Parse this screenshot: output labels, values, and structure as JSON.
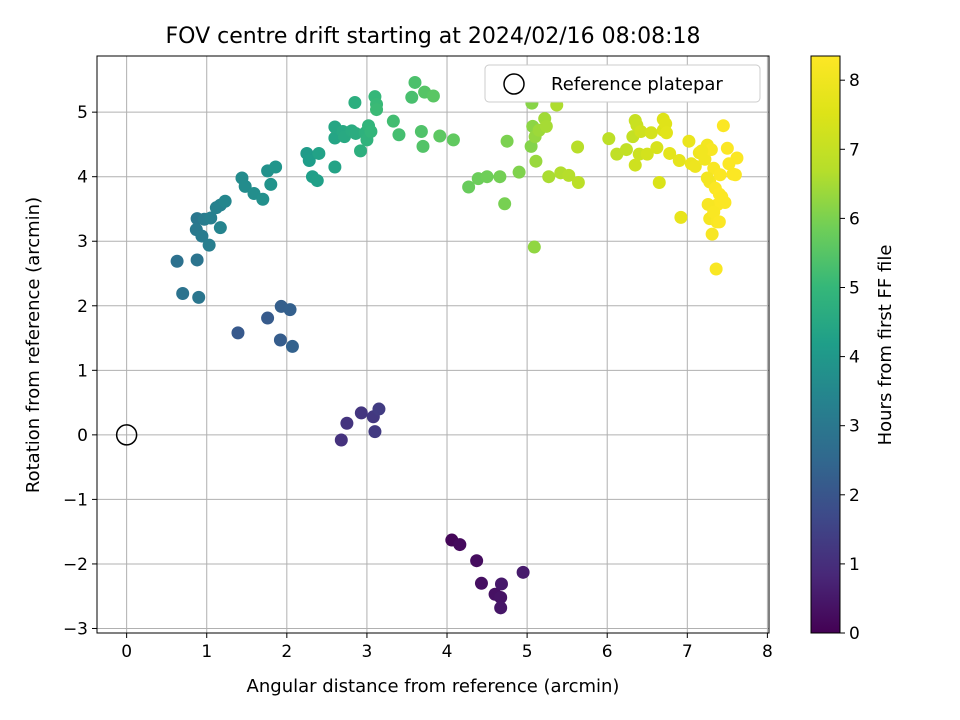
{
  "chart_data": {
    "type": "scatter",
    "title": "FOV centre drift starting at 2024/02/16 08:08:18",
    "xlabel": "Angular distance from reference (arcmin)",
    "ylabel": "Rotation from reference (arcmin)",
    "xlim": [
      -0.37,
      8.02
    ],
    "ylim": [
      -3.07,
      5.87
    ],
    "xticks": [
      "0",
      "1",
      "2",
      "3",
      "4",
      "5",
      "6",
      "7",
      "8"
    ],
    "yticks": [
      "−3",
      "−2",
      "−1",
      "0",
      "1",
      "2",
      "3",
      "4",
      "5"
    ],
    "grid": true,
    "legend": {
      "placement": "top-right",
      "entries": [
        "Reference platepar"
      ]
    },
    "colorbar": {
      "label": "Hours from first FF file",
      "range": [
        0,
        8.35
      ],
      "ticks": [
        "0",
        "1",
        "2",
        "3",
        "4",
        "5",
        "6",
        "7",
        "8"
      ],
      "colormap": "viridis"
    },
    "reference_point": {
      "x": 0,
      "y": 0,
      "name": "Reference platepar"
    },
    "points": [
      [
        4.06,
        -1.63,
        0.1
      ],
      [
        4.16,
        -1.7,
        0.2
      ],
      [
        4.37,
        -1.95,
        0.25
      ],
      [
        4.43,
        -2.3,
        0.3
      ],
      [
        4.6,
        -2.47,
        0.35
      ],
      [
        4.67,
        -2.52,
        0.4
      ],
      [
        4.67,
        -2.68,
        0.45
      ],
      [
        4.68,
        -2.31,
        0.5
      ],
      [
        4.95,
        -2.13,
        0.55
      ],
      [
        2.68,
        -0.08,
        1.1
      ],
      [
        2.75,
        0.18,
        1.15
      ],
      [
        2.93,
        0.34,
        1.2
      ],
      [
        3.08,
        0.28,
        1.25
      ],
      [
        3.1,
        0.05,
        1.3
      ],
      [
        3.15,
        0.4,
        1.35
      ],
      [
        1.39,
        1.58,
        2.1
      ],
      [
        1.76,
        1.81,
        2.15
      ],
      [
        1.92,
        1.47,
        2.2
      ],
      [
        1.93,
        1.99,
        2.25
      ],
      [
        2.04,
        1.94,
        2.3
      ],
      [
        2.07,
        1.37,
        2.35
      ],
      [
        0.63,
        2.69,
        2.8
      ],
      [
        0.7,
        2.19,
        2.85
      ],
      [
        0.88,
        2.71,
        2.9
      ],
      [
        0.9,
        2.13,
        2.95
      ],
      [
        0.88,
        3.35,
        3.0
      ],
      [
        0.87,
        3.18,
        3.05
      ],
      [
        0.94,
        3.08,
        3.1
      ],
      [
        0.97,
        3.34,
        3.15
      ],
      [
        1.03,
        2.94,
        3.2
      ],
      [
        1.05,
        3.36,
        3.25
      ],
      [
        1.12,
        3.52,
        3.3
      ],
      [
        1.17,
        3.56,
        3.35
      ],
      [
        1.17,
        3.21,
        3.4
      ],
      [
        1.23,
        3.62,
        3.45
      ],
      [
        1.44,
        3.98,
        3.6
      ],
      [
        1.48,
        3.85,
        3.65
      ],
      [
        1.59,
        3.74,
        3.7
      ],
      [
        1.7,
        3.65,
        3.75
      ],
      [
        1.76,
        4.09,
        3.8
      ],
      [
        1.8,
        3.88,
        3.85
      ],
      [
        1.86,
        4.15,
        3.9
      ],
      [
        2.25,
        4.36,
        4.1
      ],
      [
        2.28,
        4.25,
        4.15
      ],
      [
        2.32,
        4.0,
        4.2
      ],
      [
        2.38,
        3.94,
        4.25
      ],
      [
        2.4,
        4.36,
        4.3
      ],
      [
        2.6,
        4.15,
        4.35
      ],
      [
        2.6,
        4.6,
        4.4
      ],
      [
        2.6,
        4.77,
        4.45
      ],
      [
        2.7,
        4.7,
        4.5
      ],
      [
        2.72,
        4.62,
        4.55
      ],
      [
        2.81,
        4.71,
        4.6
      ],
      [
        2.86,
        4.67,
        4.65
      ],
      [
        2.85,
        5.15,
        4.7
      ],
      [
        2.92,
        4.4,
        4.75
      ],
      [
        2.98,
        4.68,
        4.8
      ],
      [
        3.0,
        4.57,
        4.85
      ],
      [
        3.02,
        4.79,
        4.9
      ],
      [
        3.05,
        4.7,
        4.95
      ],
      [
        3.1,
        5.24,
        5.0
      ],
      [
        3.12,
        5.12,
        5.05
      ],
      [
        3.12,
        5.04,
        5.1
      ],
      [
        3.33,
        4.86,
        5.2
      ],
      [
        3.4,
        4.65,
        5.25
      ],
      [
        3.56,
        5.23,
        5.3
      ],
      [
        3.6,
        5.46,
        5.35
      ],
      [
        3.68,
        4.7,
        5.4
      ],
      [
        3.7,
        4.47,
        5.45
      ],
      [
        3.72,
        5.31,
        5.5
      ],
      [
        3.83,
        5.25,
        5.55
      ],
      [
        3.91,
        4.63,
        5.6
      ],
      [
        4.08,
        4.57,
        5.65
      ],
      [
        4.27,
        3.84,
        5.75
      ],
      [
        4.39,
        3.97,
        5.8
      ],
      [
        4.5,
        4.0,
        5.85
      ],
      [
        4.66,
        4.0,
        5.9
      ],
      [
        4.72,
        3.58,
        5.95
      ],
      [
        4.75,
        4.55,
        6.0
      ],
      [
        4.9,
        4.07,
        6.05
      ],
      [
        5.05,
        4.47,
        6.1
      ],
      [
        5.06,
        5.14,
        6.15
      ],
      [
        5.07,
        4.78,
        6.2
      ],
      [
        5.09,
        2.91,
        6.25
      ],
      [
        5.1,
        4.62,
        6.3
      ],
      [
        5.11,
        4.24,
        6.35
      ],
      [
        5.15,
        4.72,
        6.4
      ],
      [
        5.22,
        4.9,
        6.45
      ],
      [
        5.24,
        4.78,
        6.5
      ],
      [
        5.27,
        4.0,
        6.55
      ],
      [
        5.37,
        5.11,
        6.6
      ],
      [
        5.42,
        4.06,
        6.65
      ],
      [
        5.52,
        4.02,
        6.7
      ],
      [
        5.63,
        4.46,
        6.75
      ],
      [
        5.64,
        3.91,
        6.8
      ],
      [
        6.02,
        4.59,
        6.85
      ],
      [
        6.12,
        4.35,
        6.9
      ],
      [
        6.24,
        4.42,
        6.95
      ],
      [
        6.32,
        4.62,
        7.0
      ],
      [
        6.35,
        4.87,
        7.05
      ],
      [
        6.37,
        4.8,
        7.1
      ],
      [
        6.4,
        4.35,
        7.15
      ],
      [
        6.35,
        4.18,
        7.2
      ],
      [
        6.42,
        4.7,
        7.25
      ],
      [
        6.5,
        4.35,
        7.3
      ],
      [
        6.55,
        4.68,
        7.35
      ],
      [
        6.62,
        4.45,
        7.4
      ],
      [
        6.65,
        3.91,
        7.45
      ],
      [
        6.7,
        4.72,
        7.5
      ],
      [
        6.7,
        4.89,
        7.55
      ],
      [
        6.73,
        4.82,
        7.6
      ],
      [
        6.74,
        4.68,
        7.65
      ],
      [
        6.78,
        4.36,
        7.7
      ],
      [
        6.9,
        4.25,
        7.75
      ],
      [
        6.92,
        3.37,
        7.8
      ],
      [
        7.02,
        4.55,
        7.85
      ],
      [
        7.05,
        4.2,
        7.9
      ],
      [
        7.1,
        4.16,
        7.95
      ],
      [
        7.15,
        4.37,
        8.0
      ],
      [
        7.22,
        4.27,
        8.05
      ],
      [
        7.25,
        4.49,
        8.1
      ],
      [
        7.28,
        3.92,
        8.15
      ],
      [
        7.3,
        4.42,
        8.2
      ],
      [
        7.33,
        4.13,
        8.25
      ],
      [
        7.35,
        3.82,
        8.3
      ],
      [
        7.4,
        3.73,
        8.35
      ],
      [
        7.18,
        4.4,
        8.05
      ],
      [
        7.25,
        3.98,
        8.1
      ],
      [
        7.28,
        3.35,
        8.15
      ],
      [
        7.31,
        3.11,
        8.2
      ],
      [
        7.36,
        2.57,
        8.25
      ],
      [
        7.37,
        3.3,
        8.25
      ],
      [
        7.38,
        3.57,
        8.3
      ],
      [
        7.41,
        4.03,
        8.3
      ],
      [
        7.43,
        3.69,
        8.3
      ],
      [
        7.45,
        4.79,
        8.3
      ],
      [
        7.47,
        3.6,
        8.3
      ],
      [
        7.5,
        4.44,
        8.3
      ],
      [
        7.52,
        4.2,
        8.3
      ],
      [
        7.57,
        4.04,
        8.3
      ],
      [
        7.6,
        4.03,
        8.3
      ],
      [
        7.62,
        4.29,
        8.3
      ],
      [
        7.26,
        3.57,
        8.2
      ],
      [
        7.33,
        3.45,
        8.25
      ],
      [
        7.4,
        3.3,
        8.3
      ]
    ]
  }
}
